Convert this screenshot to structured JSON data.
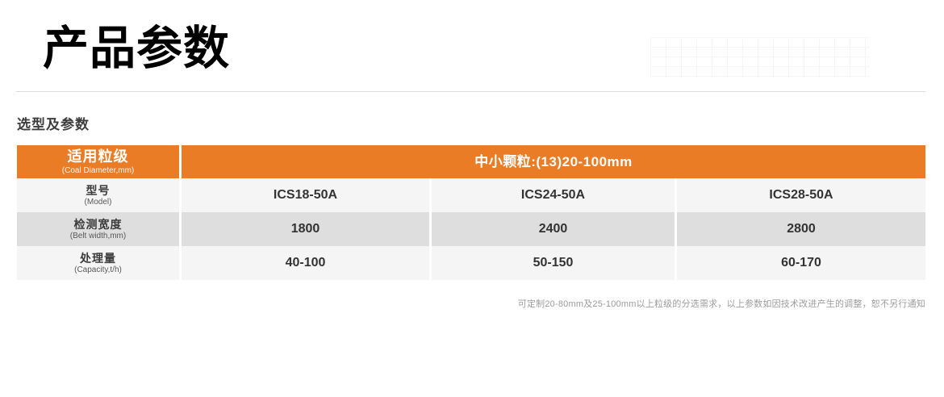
{
  "page": {
    "title": "产品参数",
    "section_title": "选型及参数",
    "footnote": "可定制20-80mm及25-100mm以上粒级的分选需求，以上参数如因技术改进产生的调整，恕不另行通知"
  },
  "colors": {
    "accent_orange": "#EA7C25",
    "row_gray": "#DEDEDE",
    "row_light": "#F5F5F5"
  },
  "table": {
    "header": {
      "col1_zh": "适用粒级",
      "col1_en": "(Coal Diameter,mm)",
      "span_title": "中小颗粒:(13)20-100mm"
    },
    "rows": [
      {
        "label_zh": "型号",
        "label_en": "(Model)",
        "values": [
          "ICS18-50A",
          "ICS24-50A",
          "ICS28-50A"
        ]
      },
      {
        "label_zh": "检测宽度",
        "label_en": "(Belt width,mm)",
        "values": [
          "1800",
          "2400",
          "2800"
        ]
      },
      {
        "label_zh": "处理量",
        "label_en": "(Capacity,t/h)",
        "values": [
          "40-100",
          "50-150",
          "60-170"
        ]
      }
    ]
  }
}
